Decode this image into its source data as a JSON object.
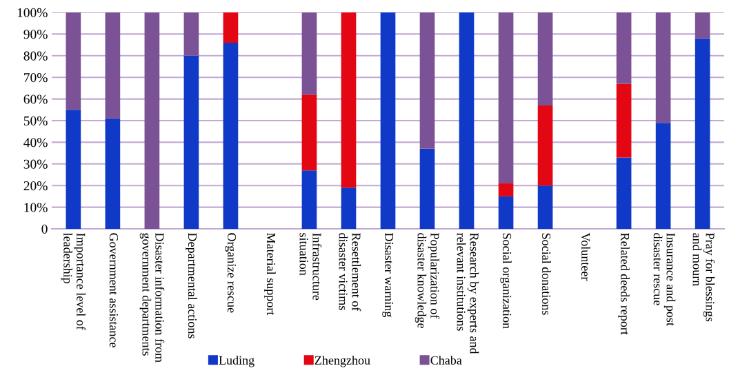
{
  "chart_data": {
    "type": "bar",
    "stacked": true,
    "categories": [
      "Importance level of\nleadership",
      "Government assistance",
      "Disaster information from\ngovernment departments",
      "Departmental actions",
      "Organize rescue",
      "Material support",
      "Infrastructure\nsituation",
      "Resettlement of\ndisaster victims",
      "Disaster warning",
      "Popularization of\ndisaster knowledge",
      "Research by experts and\nrelevant institutions",
      "Social organization",
      "Social donations",
      "Volunteer",
      "Related deeds report",
      "Insurance and post\ndisaster rescue",
      "Pray for blessings\nand mourn"
    ],
    "series": [
      {
        "name": "Luding",
        "color": "#1139c8",
        "values": [
          55,
          51,
          0,
          80,
          86,
          0,
          27,
          19,
          100,
          37,
          100,
          15,
          20,
          0,
          33,
          49,
          88
        ]
      },
      {
        "name": "Zhengzhou",
        "color": "#e30613",
        "values": [
          0,
          0,
          0,
          0,
          14,
          0,
          35,
          81,
          0,
          0,
          0,
          6,
          37,
          0,
          34,
          0,
          0
        ]
      },
      {
        "name": "Chaba",
        "color": "#7b5296",
        "values": [
          45,
          49,
          100,
          20,
          0,
          0,
          38,
          0,
          0,
          63,
          0,
          79,
          43,
          0,
          33,
          51,
          12
        ]
      }
    ],
    "ylim": [
      0,
      100
    ],
    "yticks": [
      0,
      {
        "value": 10,
        "label": "10%"
      },
      {
        "value": 20,
        "label": "20%"
      },
      {
        "value": 30,
        "label": "30%"
      },
      {
        "value": 40,
        "label": "40%"
      },
      {
        "value": 50,
        "label": "50%"
      },
      {
        "value": 60,
        "label": "60%"
      },
      {
        "value": 70,
        "label": "70%"
      },
      {
        "value": 80,
        "label": "80%"
      },
      {
        "value": 90,
        "label": "90%"
      },
      {
        "value": 100,
        "label": "100%"
      }
    ],
    "grid": "y",
    "legend": "bottom"
  }
}
